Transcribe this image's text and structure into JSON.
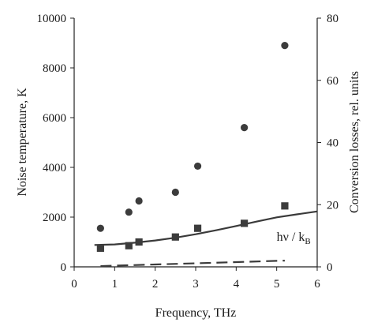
{
  "chart_data": {
    "type": "scatter",
    "xlabel": "Frequency, THz",
    "ylabel_left": "Noise temperature, K",
    "ylabel_right": "Conversion losses, rel. units",
    "xlim": [
      0,
      6
    ],
    "ylim_left": [
      0,
      10000
    ],
    "ylim_right": [
      0,
      80
    ],
    "x_ticks": [
      "0",
      "1",
      "2",
      "3",
      "4",
      "5",
      "6"
    ],
    "y_left_ticks": [
      "0",
      "2000",
      "4000",
      "6000",
      "8000",
      "10000"
    ],
    "y_right_ticks": [
      "0",
      "20",
      "40",
      "60",
      "80"
    ],
    "grid": false,
    "annotation": {
      "text_main": "hν  /  k",
      "text_sub": "B",
      "x": 5.0,
      "y": 1050
    },
    "series": [
      {
        "marker": "circle",
        "axis": "left",
        "points": [
          [
            0.65,
            1550
          ],
          [
            1.35,
            2200
          ],
          [
            1.6,
            2650
          ],
          [
            2.5,
            3000
          ],
          [
            3.05,
            4050
          ],
          [
            4.2,
            5600
          ],
          [
            5.2,
            8900
          ]
        ]
      },
      {
        "marker": "square",
        "axis": "left",
        "points": [
          [
            0.65,
            750
          ],
          [
            1.35,
            850
          ],
          [
            1.6,
            1000
          ],
          [
            2.5,
            1200
          ],
          [
            3.05,
            1550
          ],
          [
            4.2,
            1750
          ],
          [
            5.2,
            2450
          ]
        ]
      },
      {
        "style": "solid-line",
        "axis": "left",
        "points": [
          [
            0.5,
            880
          ],
          [
            1.0,
            900
          ],
          [
            1.5,
            970
          ],
          [
            2.0,
            1060
          ],
          [
            2.5,
            1170
          ],
          [
            3.0,
            1310
          ],
          [
            3.5,
            1470
          ],
          [
            4.0,
            1640
          ],
          [
            4.5,
            1820
          ],
          [
            5.0,
            1990
          ],
          [
            5.5,
            2110
          ],
          [
            6.0,
            2230
          ]
        ]
      },
      {
        "style": "dashed-line",
        "axis": "left",
        "points": [
          [
            0.65,
            30
          ],
          [
            1.0,
            48
          ],
          [
            2.0,
            96
          ],
          [
            3.0,
            144
          ],
          [
            4.0,
            192
          ],
          [
            5.2,
            250
          ]
        ]
      }
    ]
  }
}
